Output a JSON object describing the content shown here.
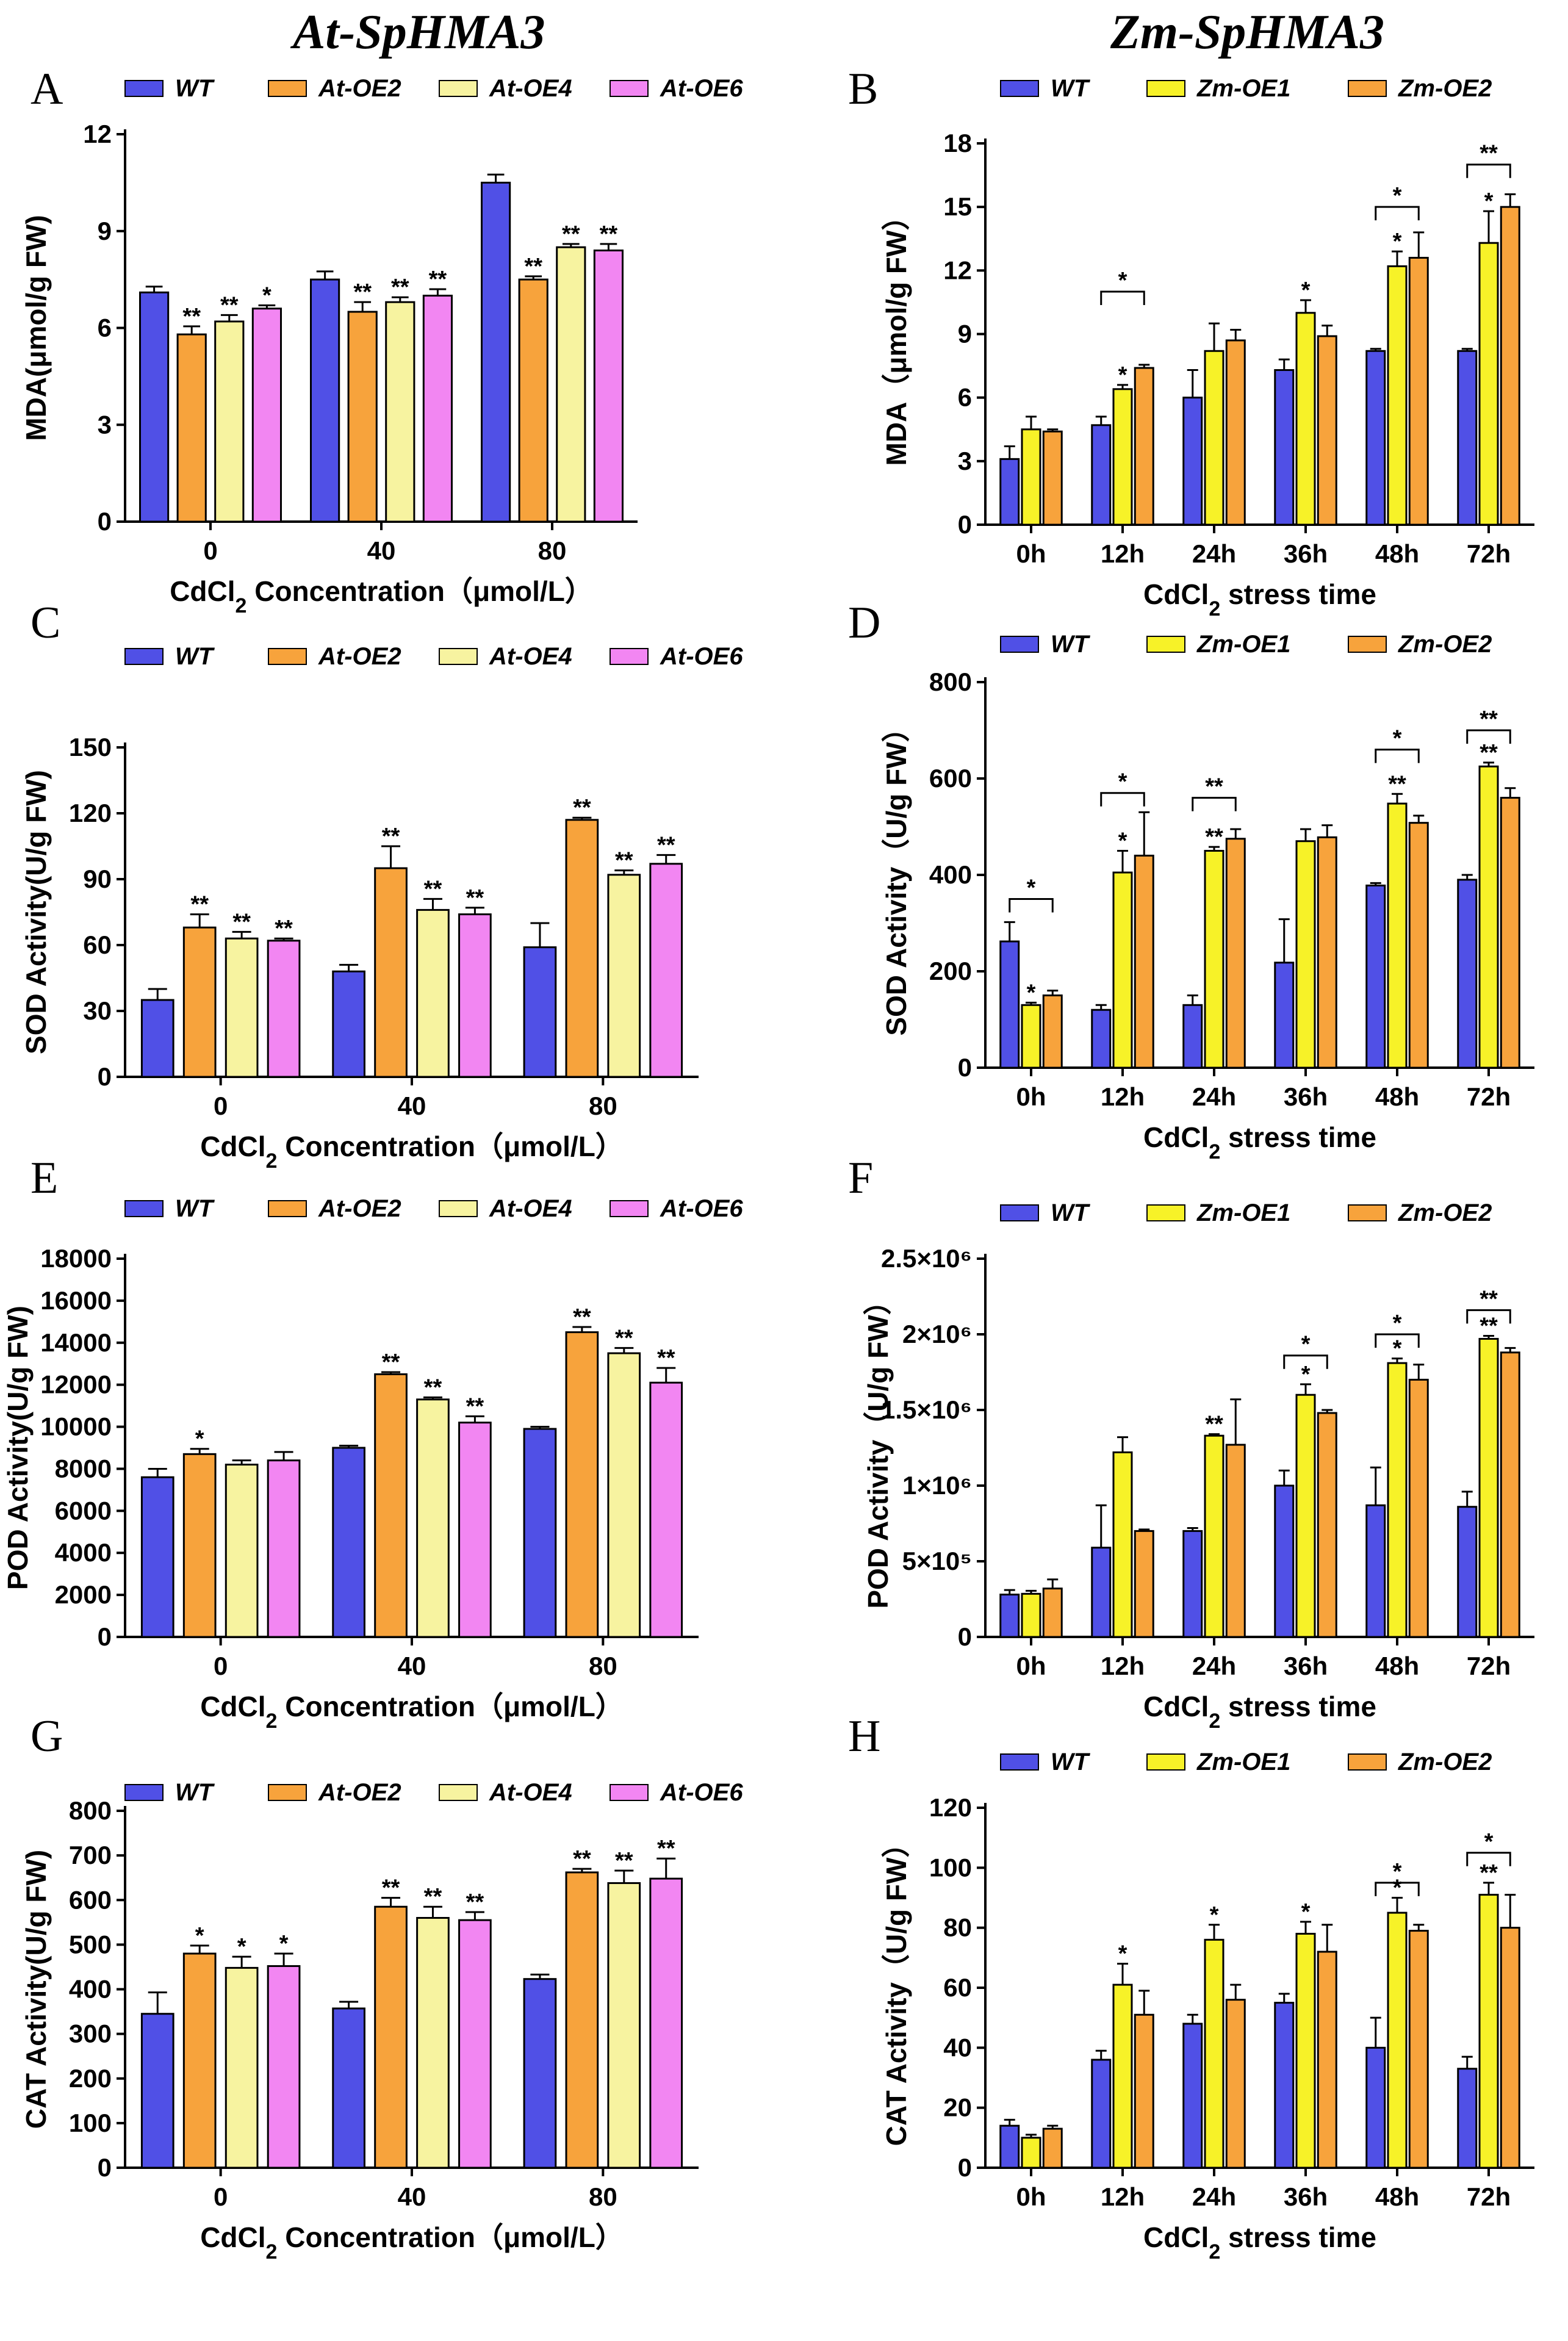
{
  "column_titles": {
    "left": "At-SpHMA3",
    "right": "Zm-SpHMA3"
  },
  "colors": {
    "WT": "#5050e6",
    "At-OE2": "#f7a33c",
    "At-OE4": "#f7f3a0",
    "At-OE6": "#f286f2",
    "Zm-OE1": "#f7f228",
    "Zm-OE2": "#f7a33c"
  },
  "chart_data": [
    {
      "panel": "A",
      "type": "bar",
      "categories": [
        "0",
        "40",
        "80"
      ],
      "xlabel": "CdCl2 Concentration（μmol/L）",
      "ylabel": "MDA(μmol/g FW)",
      "ylim": [
        0,
        12
      ],
      "yticks": [
        0,
        3,
        6,
        9,
        12
      ],
      "series": [
        {
          "name": "WT",
          "color": "#5050e6",
          "values": [
            7.1,
            7.5,
            10.5
          ],
          "errors": [
            0.18,
            0.25,
            0.25
          ],
          "sig": [
            "",
            "",
            ""
          ]
        },
        {
          "name": "At-OE2",
          "color": "#f7a33c",
          "values": [
            5.8,
            6.5,
            7.5
          ],
          "errors": [
            0.25,
            0.3,
            0.1
          ],
          "sig": [
            "**",
            "**",
            "**"
          ]
        },
        {
          "name": "At-OE4",
          "color": "#f7f3a0",
          "values": [
            6.2,
            6.8,
            8.5
          ],
          "errors": [
            0.2,
            0.15,
            0.1
          ],
          "sig": [
            "**",
            "**",
            "**"
          ]
        },
        {
          "name": "At-OE6",
          "color": "#f286f2",
          "values": [
            6.6,
            7.0,
            8.4
          ],
          "errors": [
            0.1,
            0.2,
            0.2
          ],
          "sig": [
            "*",
            "**",
            "**"
          ]
        }
      ],
      "brackets": []
    },
    {
      "panel": "B",
      "type": "bar",
      "categories": [
        "0h",
        "12h",
        "24h",
        "36h",
        "48h",
        "72h"
      ],
      "xlabel": "CdCl2 stress time",
      "ylabel": "MDA（μmol/g FW）",
      "ylim": [
        0,
        18
      ],
      "yticks": [
        0,
        3,
        6,
        9,
        12,
        15,
        18
      ],
      "series": [
        {
          "name": "WT",
          "color": "#5050e6",
          "values": [
            3.1,
            4.7,
            6.0,
            7.3,
            8.2,
            8.2
          ],
          "errors": [
            0.6,
            0.4,
            1.3,
            0.5,
            0.1,
            0.1
          ],
          "sig": [
            "",
            "",
            "",
            "",
            "",
            ""
          ]
        },
        {
          "name": "Zm-OE1",
          "color": "#f7f228",
          "values": [
            4.5,
            6.4,
            8.2,
            10.0,
            12.2,
            13.3
          ],
          "errors": [
            0.6,
            0.2,
            1.3,
            0.6,
            0.7,
            1.5
          ],
          "sig": [
            "",
            "*",
            "",
            "*",
            "*",
            "*"
          ]
        },
        {
          "name": "Zm-OE2",
          "color": "#f7a33c",
          "values": [
            4.4,
            7.4,
            8.7,
            8.9,
            12.6,
            15.0
          ],
          "errors": [
            0.1,
            0.15,
            0.5,
            0.5,
            1.2,
            0.6
          ],
          "sig": [
            "",
            "",
            "",
            "",
            "",
            ""
          ]
        }
      ],
      "brackets": [
        {
          "group": 1,
          "from": 0,
          "to": 2,
          "label": "*",
          "value": 11.0
        },
        {
          "group": 4,
          "from": 0,
          "to": 2,
          "label": "*",
          "value": 15.0
        },
        {
          "group": 5,
          "from": 0,
          "to": 2,
          "label": "**",
          "value": 17.0
        }
      ]
    },
    {
      "panel": "C",
      "type": "bar",
      "categories": [
        "0",
        "40",
        "80"
      ],
      "xlabel": "CdCl2 Concentration（μmol/L）",
      "ylabel": "SOD Activity(U/g FW)",
      "ylim": [
        0,
        150
      ],
      "yticks": [
        0,
        30,
        60,
        90,
        120,
        150
      ],
      "series": [
        {
          "name": "WT",
          "color": "#5050e6",
          "values": [
            35,
            48,
            59
          ],
          "errors": [
            5,
            3,
            11
          ],
          "sig": [
            "",
            "",
            ""
          ]
        },
        {
          "name": "At-OE2",
          "color": "#f7a33c",
          "values": [
            68,
            95,
            117
          ],
          "errors": [
            6,
            10,
            1
          ],
          "sig": [
            "**",
            "**",
            "**"
          ]
        },
        {
          "name": "At-OE4",
          "color": "#f7f3a0",
          "values": [
            63,
            76,
            92
          ],
          "errors": [
            3,
            5,
            2
          ],
          "sig": [
            "**",
            "**",
            "**"
          ]
        },
        {
          "name": "At-OE6",
          "color": "#f286f2",
          "values": [
            62,
            74,
            97
          ],
          "errors": [
            1,
            3,
            4
          ],
          "sig": [
            "**",
            "**",
            "**"
          ]
        }
      ],
      "brackets": []
    },
    {
      "panel": "D",
      "type": "bar",
      "categories": [
        "0h",
        "12h",
        "24h",
        "36h",
        "48h",
        "72h"
      ],
      "xlabel": "CdCl2 stress time",
      "ylabel": "SOD Activity（U/g FW）",
      "ylim": [
        0,
        800
      ],
      "yticks": [
        0,
        200,
        400,
        600,
        800
      ],
      "series": [
        {
          "name": "WT",
          "color": "#5050e6",
          "values": [
            262,
            120,
            130,
            218,
            378,
            390
          ],
          "errors": [
            40,
            10,
            20,
            90,
            5,
            10
          ],
          "sig": [
            "",
            "",
            "",
            "",
            "",
            ""
          ]
        },
        {
          "name": "Zm-OE1",
          "color": "#f7f228",
          "values": [
            130,
            405,
            450,
            470,
            548,
            625
          ],
          "errors": [
            5,
            45,
            8,
            25,
            20,
            8
          ],
          "sig": [
            "*",
            "*",
            "**",
            "",
            "**",
            "**"
          ]
        },
        {
          "name": "Zm-OE2",
          "color": "#f7a33c",
          "values": [
            150,
            440,
            475,
            478,
            508,
            560
          ],
          "errors": [
            10,
            90,
            20,
            25,
            15,
            20
          ],
          "sig": [
            "",
            "",
            "",
            "",
            "",
            ""
          ]
        }
      ],
      "brackets": [
        {
          "group": 0,
          "from": 0,
          "to": 2,
          "label": "*",
          "value": 350
        },
        {
          "group": 1,
          "from": 0,
          "to": 2,
          "label": "*",
          "value": 570
        },
        {
          "group": 2,
          "from": 0,
          "to": 2,
          "label": "**",
          "value": 560
        },
        {
          "group": 4,
          "from": 0,
          "to": 2,
          "label": "*",
          "value": 660
        },
        {
          "group": 5,
          "from": 0,
          "to": 2,
          "label": "**",
          "value": 700
        }
      ]
    },
    {
      "panel": "E",
      "type": "bar",
      "categories": [
        "0",
        "40",
        "80"
      ],
      "xlabel": "CdCl2 Concentration（μmol/L）",
      "ylabel": "POD Activity(U/g FW)",
      "ylim": [
        0,
        18000
      ],
      "yticks": [
        0,
        2000,
        4000,
        6000,
        8000,
        10000,
        12000,
        14000,
        16000,
        18000
      ],
      "series": [
        {
          "name": "WT",
          "color": "#5050e6",
          "values": [
            7600,
            9000,
            9900
          ],
          "errors": [
            400,
            100,
            100
          ],
          "sig": [
            "",
            "",
            ""
          ]
        },
        {
          "name": "At-OE2",
          "color": "#f7a33c",
          "values": [
            8700,
            12500,
            14500
          ],
          "errors": [
            250,
            100,
            250
          ],
          "sig": [
            "*",
            "**",
            "**"
          ]
        },
        {
          "name": "At-OE4",
          "color": "#f7f3a0",
          "values": [
            8200,
            11300,
            13500
          ],
          "errors": [
            200,
            100,
            250
          ],
          "sig": [
            "",
            "**",
            "**"
          ]
        },
        {
          "name": "At-OE6",
          "color": "#f286f2",
          "values": [
            8400,
            10200,
            12100
          ],
          "errors": [
            400,
            300,
            700
          ],
          "sig": [
            "",
            "**",
            "**"
          ]
        }
      ],
      "brackets": []
    },
    {
      "panel": "F",
      "type": "bar",
      "categories": [
        "0h",
        "12h",
        "24h",
        "36h",
        "48h",
        "72h"
      ],
      "xlabel": "CdCl2 stress time",
      "ylabel": "POD Activity（U/g FW）",
      "ylim": [
        0,
        2500000
      ],
      "yticks": [
        0,
        500000,
        1000000,
        1500000,
        2000000,
        2500000
      ],
      "ytick_labels": [
        "0",
        "5×10⁵",
        "1×10⁶",
        "1.5×10⁶",
        "2×10⁶",
        "2.5×10⁶"
      ],
      "series": [
        {
          "name": "WT",
          "color": "#5050e6",
          "values": [
            280000,
            590000,
            700000,
            1000000,
            870000,
            860000
          ],
          "errors": [
            30000,
            280000,
            20000,
            100000,
            250000,
            100000
          ],
          "sig": [
            "",
            "",
            "",
            "",
            "",
            ""
          ]
        },
        {
          "name": "Zm-OE1",
          "color": "#f7f228",
          "values": [
            285000,
            1220000,
            1330000,
            1600000,
            1810000,
            1970000
          ],
          "errors": [
            20000,
            100000,
            10000,
            70000,
            30000,
            20000
          ],
          "sig": [
            "",
            "",
            "**",
            "*",
            "*",
            "**"
          ]
        },
        {
          "name": "Zm-OE2",
          "color": "#f7a33c",
          "values": [
            320000,
            700000,
            1270000,
            1480000,
            1700000,
            1880000
          ],
          "errors": [
            60000,
            10000,
            300000,
            20000,
            100000,
            30000
          ],
          "sig": [
            "",
            "",
            "",
            "",
            "",
            ""
          ]
        }
      ],
      "brackets": [
        {
          "group": 3,
          "from": 0,
          "to": 2,
          "label": "*",
          "value": 1860000
        },
        {
          "group": 4,
          "from": 0,
          "to": 2,
          "label": "*",
          "value": 2000000
        },
        {
          "group": 5,
          "from": 0,
          "to": 2,
          "label": "**",
          "value": 2160000
        }
      ]
    },
    {
      "panel": "G",
      "type": "bar",
      "categories": [
        "0",
        "40",
        "80"
      ],
      "xlabel": "CdCl2 Concentration（μmol/L）",
      "ylabel": "CAT Activity(U/g FW)",
      "ylim": [
        0,
        800
      ],
      "yticks": [
        0,
        100,
        200,
        300,
        400,
        500,
        600,
        700,
        800
      ],
      "series": [
        {
          "name": "WT",
          "color": "#5050e6",
          "values": [
            345,
            357,
            423
          ],
          "errors": [
            48,
            15,
            10
          ],
          "sig": [
            "",
            "",
            ""
          ]
        },
        {
          "name": "At-OE2",
          "color": "#f7a33c",
          "values": [
            480,
            585,
            662
          ],
          "errors": [
            18,
            20,
            8
          ],
          "sig": [
            "*",
            "**",
            "**"
          ]
        },
        {
          "name": "At-OE4",
          "color": "#f7f3a0",
          "values": [
            448,
            560,
            638
          ],
          "errors": [
            25,
            25,
            28
          ],
          "sig": [
            "*",
            "**",
            "**"
          ]
        },
        {
          "name": "At-OE6",
          "color": "#f286f2",
          "values": [
            452,
            555,
            648
          ],
          "errors": [
            28,
            18,
            45
          ],
          "sig": [
            "*",
            "**",
            "**"
          ]
        }
      ],
      "brackets": []
    },
    {
      "panel": "H",
      "type": "bar",
      "categories": [
        "0h",
        "12h",
        "24h",
        "36h",
        "48h",
        "72h"
      ],
      "xlabel": "CdCl2 stress time",
      "ylabel": "CAT Activity（U/g FW）",
      "ylim": [
        0,
        120
      ],
      "yticks": [
        0,
        20,
        40,
        60,
        80,
        100,
        120
      ],
      "series": [
        {
          "name": "WT",
          "color": "#5050e6",
          "values": [
            14,
            36,
            48,
            55,
            40,
            33
          ],
          "errors": [
            2,
            3,
            3,
            3,
            10,
            4
          ],
          "sig": [
            "",
            "",
            "",
            "",
            "",
            ""
          ]
        },
        {
          "name": "Zm-OE1",
          "color": "#f7f228",
          "values": [
            10,
            61,
            76,
            78,
            85,
            91
          ],
          "errors": [
            1,
            7,
            5,
            4,
            5,
            4
          ],
          "sig": [
            "",
            "*",
            "*",
            "*",
            "*",
            "**"
          ]
        },
        {
          "name": "Zm-OE2",
          "color": "#f7a33c",
          "values": [
            13,
            51,
            56,
            72,
            79,
            80
          ],
          "errors": [
            1,
            8,
            5,
            9,
            2,
            11
          ],
          "sig": [
            "",
            "",
            "",
            "",
            "",
            ""
          ]
        }
      ],
      "brackets": [
        {
          "group": 4,
          "from": 0,
          "to": 2,
          "label": "*",
          "value": 95
        },
        {
          "group": 5,
          "from": 0,
          "to": 2,
          "label": "*",
          "value": 105
        }
      ]
    }
  ]
}
